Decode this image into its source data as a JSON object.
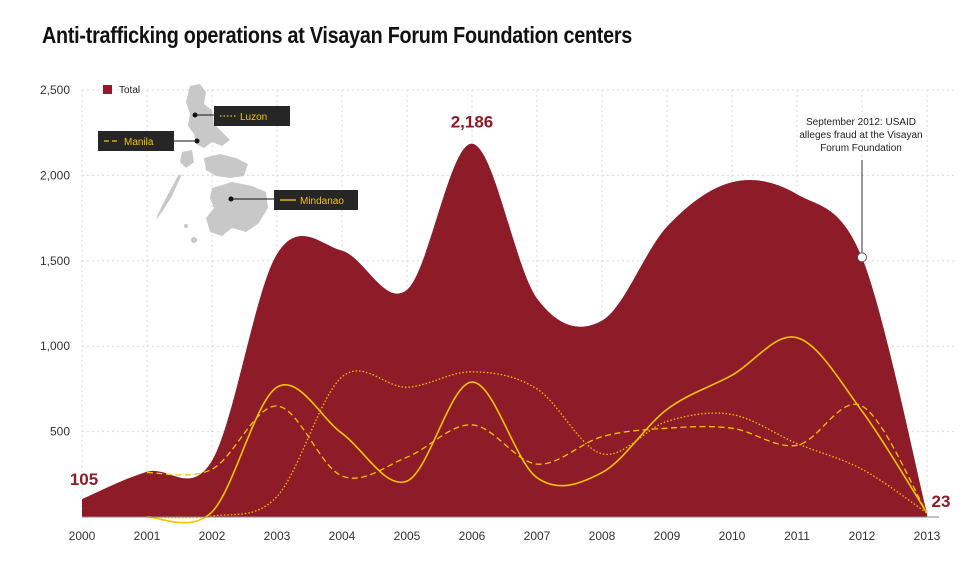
{
  "title": "Anti-trafficking operations at Visayan Forum Foundation centers",
  "chart_data": {
    "type": "area",
    "x": [
      2000,
      2001,
      2002,
      2003,
      2004,
      2005,
      2006,
      2007,
      2008,
      2009,
      2010,
      2011,
      2012,
      2013
    ],
    "xlim": [
      2000,
      2013
    ],
    "ylim": [
      0,
      2500
    ],
    "y_ticks": [
      500,
      1000,
      1500,
      2000,
      2500
    ],
    "y_tick_labels": [
      "500",
      "1,000",
      "1,500",
      "2,000",
      "2,500"
    ],
    "grid": true,
    "series": [
      {
        "name": "Total",
        "style": "area",
        "color": "#8e1c28",
        "values": [
          105,
          265,
          330,
          1540,
          1560,
          1330,
          2186,
          1280,
          1150,
          1700,
          1960,
          1890,
          1520,
          23
        ]
      },
      {
        "name": "Luzon",
        "style": "dotted",
        "color": "#f2c200",
        "values": [
          null,
          0,
          5,
          120,
          820,
          760,
          850,
          750,
          370,
          560,
          600,
          430,
          280,
          23
        ]
      },
      {
        "name": "Manila",
        "style": "dashed",
        "color": "#f2c200",
        "values": [
          null,
          260,
          280,
          650,
          240,
          350,
          540,
          310,
          470,
          520,
          520,
          420,
          650,
          23
        ]
      },
      {
        "name": "Mindanao",
        "style": "solid",
        "color": "#f2c200",
        "values": [
          null,
          0,
          30,
          760,
          490,
          210,
          790,
          230,
          260,
          630,
          830,
          1050,
          620,
          23
        ]
      }
    ],
    "data_labels": [
      {
        "x": 2000,
        "text": "105"
      },
      {
        "x": 2006,
        "text": "2,186"
      },
      {
        "x": 2013,
        "text": "23"
      }
    ],
    "legend": {
      "label": "Total",
      "placement": "top-left"
    },
    "annotation": {
      "x": 2012,
      "y": 1520,
      "lines": [
        "September 2012: USAID",
        "alleges fraud at the Visayan",
        "Forum Foundation"
      ]
    },
    "map_labels": [
      "Luzon",
      "Manila",
      "Mindanao"
    ]
  }
}
